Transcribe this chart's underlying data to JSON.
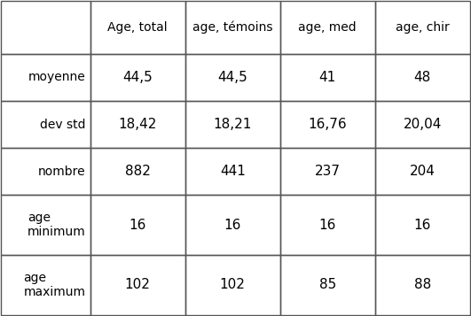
{
  "col_headers": [
    "Age, total",
    "age, témoins",
    "age, med",
    "age, chir"
  ],
  "row_headers": [
    "moyenne",
    "dev std",
    "nombre",
    "age\nminimum",
    "age\nmaximum"
  ],
  "cell_data": [
    [
      "44,5",
      "44,5",
      "41",
      "48"
    ],
    [
      "18,42",
      "18,21",
      "16,76",
      "20,04"
    ],
    [
      "882",
      "441",
      "237",
      "204"
    ],
    [
      "16",
      "16",
      "16",
      "16"
    ],
    [
      "102",
      "102",
      "85",
      "88"
    ]
  ],
  "background_color": "#ffffff",
  "line_color": "#555555",
  "text_color": "#000000",
  "header_fontsize": 10,
  "cell_fontsize": 11,
  "row_header_fontsize": 10
}
